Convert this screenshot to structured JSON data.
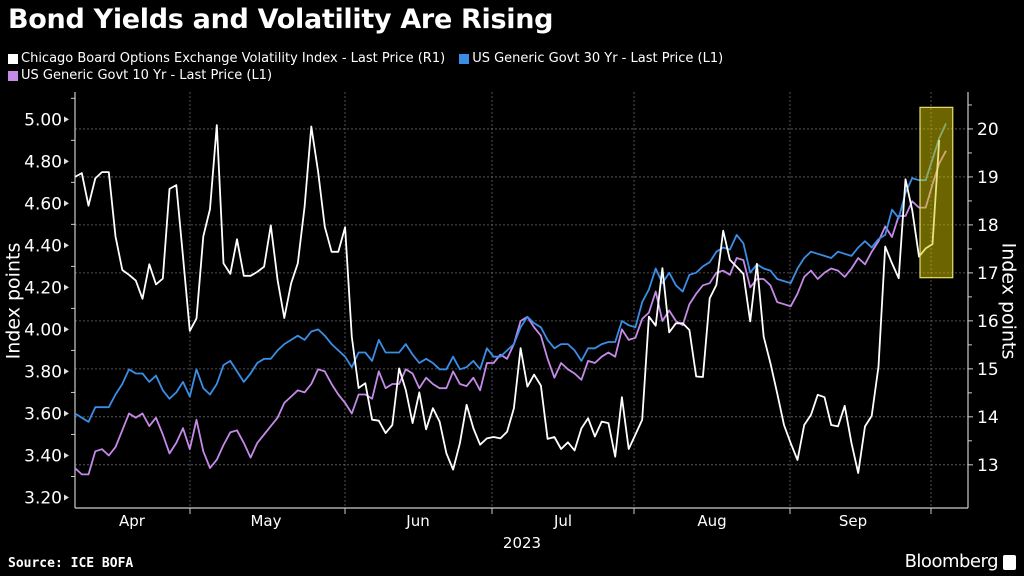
{
  "title": "Bond Yields and Volatility Are Rising",
  "legend": [
    {
      "label": "Chicago Board Options Exchange Volatility Index - Last Price (R1)",
      "color": "#ffffff"
    },
    {
      "label": "US Generic Govt 30 Yr - Last Price (L1)",
      "color": "#3a8ee6"
    },
    {
      "label": "US Generic Govt 10 Yr - Last Price (L1)",
      "color": "#c58ae8"
    }
  ],
  "source": "Source: ICE BOFA",
  "brand": "Bloomberg",
  "chart_data": {
    "type": "line",
    "title": "Bond Yields and Volatility Are Rising",
    "xlabel": "2023",
    "ylabel_left": "Index points",
    "ylabel_right": "Index points",
    "x_tick_labels": [
      "Apr",
      "May",
      "Jun",
      "Jul",
      "Aug",
      "Sep"
    ],
    "left_axis": {
      "ticks": [
        "3.20",
        "3.40",
        "3.60",
        "3.80",
        "4.00",
        "4.20",
        "4.40",
        "4.60",
        "4.80",
        "5.00"
      ],
      "range": [
        3.15,
        5.13
      ]
    },
    "right_axis": {
      "ticks": [
        "13",
        "14",
        "15",
        "16",
        "17",
        "18",
        "19",
        "20"
      ],
      "range": [
        12.1,
        20.77
      ]
    },
    "grid": true,
    "legend_position": "top-left",
    "series": [
      {
        "name": "Chicago Board Options Exchange Volatility Index - Last Price (R1)",
        "axis": "right",
        "color": "#ffffff",
        "values": [
          19.0,
          19.08,
          18.4,
          18.97,
          19.1,
          19.1,
          17.76,
          17.06,
          16.96,
          16.84,
          16.46,
          17.18,
          16.76,
          16.88,
          18.75,
          18.83,
          17.34,
          15.79,
          16.05,
          17.76,
          18.33,
          20.08,
          17.2,
          16.98,
          17.7,
          16.94,
          16.94,
          17.02,
          17.13,
          17.99,
          16.85,
          16.06,
          16.78,
          17.2,
          18.38,
          20.05,
          19.11,
          17.96,
          17.44,
          17.44,
          17.95,
          15.67,
          14.6,
          14.7,
          13.94,
          13.92,
          13.66,
          13.83,
          15.01,
          14.56,
          13.87,
          14.51,
          13.74,
          14.18,
          13.9,
          13.24,
          12.9,
          13.45,
          14.25,
          13.76,
          13.42,
          13.55,
          13.58,
          13.55,
          13.69,
          14.18,
          15.43,
          14.63,
          14.88,
          14.65,
          13.54,
          13.58,
          13.33,
          13.47,
          13.3,
          13.76,
          13.97,
          13.59,
          13.9,
          13.87,
          13.17,
          14.41,
          13.33,
          13.63,
          13.94,
          16.09,
          15.9,
          17.1,
          15.76,
          15.95,
          15.95,
          15.81,
          14.84,
          14.83,
          16.47,
          16.75,
          17.88,
          17.27,
          17.13,
          16.98,
          15.99,
          17.19,
          15.67,
          15.12,
          14.49,
          13.83,
          13.45,
          13.1,
          13.83,
          14.04,
          14.46,
          14.41,
          13.83,
          13.8,
          14.23,
          13.45,
          12.83,
          13.8,
          14.02,
          15.05,
          17.55,
          17.2,
          16.89,
          18.95,
          18.31,
          17.34,
          17.51,
          17.6,
          19.77,
          null
        ]
      },
      {
        "name": "US Generic Govt 30 Yr - Last Price (L1)",
        "axis": "left",
        "color": "#3a8ee6",
        "values": [
          3.6,
          3.58,
          3.56,
          3.63,
          3.63,
          3.63,
          3.69,
          3.74,
          3.81,
          3.79,
          3.79,
          3.75,
          3.78,
          3.71,
          3.67,
          3.7,
          3.75,
          3.68,
          3.81,
          3.72,
          3.69,
          3.74,
          3.83,
          3.85,
          3.8,
          3.75,
          3.79,
          3.84,
          3.86,
          3.86,
          3.9,
          3.93,
          3.95,
          3.97,
          3.95,
          3.99,
          4.0,
          3.97,
          3.93,
          3.9,
          3.87,
          3.82,
          3.89,
          3.89,
          3.85,
          3.95,
          3.89,
          3.89,
          3.89,
          3.93,
          3.88,
          3.84,
          3.86,
          3.84,
          3.81,
          3.81,
          3.87,
          3.81,
          3.82,
          3.85,
          3.81,
          3.91,
          3.87,
          3.87,
          3.9,
          3.93,
          4.01,
          4.06,
          4.03,
          4.01,
          3.95,
          3.91,
          3.93,
          3.93,
          3.9,
          3.85,
          3.91,
          3.91,
          3.93,
          3.94,
          3.94,
          4.04,
          4.02,
          4.01,
          4.13,
          4.19,
          4.29,
          4.22,
          4.27,
          4.21,
          4.18,
          4.26,
          4.27,
          4.3,
          4.32,
          4.37,
          4.39,
          4.38,
          4.45,
          4.41,
          4.27,
          4.31,
          4.29,
          4.28,
          4.24,
          4.23,
          4.22,
          4.29,
          4.34,
          4.37,
          4.36,
          4.35,
          4.34,
          4.37,
          4.36,
          4.35,
          4.39,
          4.42,
          4.39,
          4.43,
          4.45,
          4.57,
          4.53,
          4.65,
          4.72,
          4.71,
          4.71,
          4.81,
          4.91,
          4.98
        ]
      },
      {
        "name": "US Generic Govt 10 Yr - Last Price (L1)",
        "axis": "left",
        "color": "#c58ae8",
        "values": [
          3.34,
          3.31,
          3.31,
          3.42,
          3.43,
          3.4,
          3.44,
          3.52,
          3.6,
          3.58,
          3.6,
          3.54,
          3.58,
          3.5,
          3.41,
          3.46,
          3.53,
          3.43,
          3.57,
          3.42,
          3.34,
          3.38,
          3.45,
          3.51,
          3.52,
          3.46,
          3.39,
          3.46,
          3.5,
          3.54,
          3.58,
          3.65,
          3.68,
          3.71,
          3.7,
          3.74,
          3.81,
          3.8,
          3.74,
          3.69,
          3.65,
          3.6,
          3.69,
          3.69,
          3.67,
          3.8,
          3.72,
          3.74,
          3.74,
          3.81,
          3.79,
          3.72,
          3.77,
          3.74,
          3.72,
          3.72,
          3.8,
          3.74,
          3.73,
          3.77,
          3.71,
          3.84,
          3.84,
          3.88,
          3.86,
          3.93,
          4.04,
          4.06,
          4.01,
          3.97,
          3.86,
          3.77,
          3.84,
          3.81,
          3.79,
          3.76,
          3.85,
          3.84,
          3.87,
          3.89,
          3.87,
          4.0,
          3.95,
          3.96,
          4.05,
          4.08,
          4.18,
          4.04,
          4.09,
          4.04,
          4.02,
          4.12,
          4.17,
          4.21,
          4.22,
          4.27,
          4.28,
          4.26,
          4.34,
          4.33,
          4.2,
          4.24,
          4.24,
          4.21,
          4.13,
          4.12,
          4.11,
          4.17,
          4.25,
          4.28,
          4.24,
          4.27,
          4.29,
          4.28,
          4.25,
          4.29,
          4.34,
          4.31,
          4.37,
          4.42,
          4.49,
          4.44,
          4.54,
          4.54,
          4.61,
          4.58,
          4.58,
          4.69,
          4.79,
          4.85
        ]
      }
    ],
    "highlight": {
      "from_index": 126,
      "to_index": 129,
      "axis": "right",
      "y_min": 16.9,
      "y_max": 20.45,
      "color": "#d8c800",
      "border": "#e8e070"
    }
  }
}
